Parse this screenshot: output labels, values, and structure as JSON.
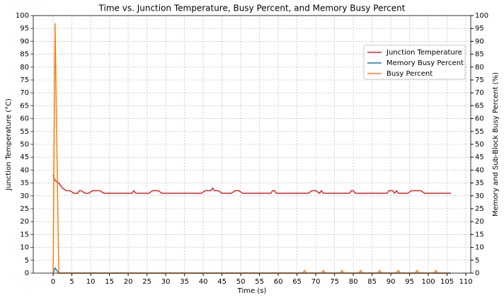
{
  "chart_data": {
    "type": "line",
    "title": "Time vs. Junction Temperature, Busy Percent, and Memory Busy Percent",
    "x_label": "Time (s)",
    "y_label": "Junction Temperature (°C)",
    "y2_label": "Memory and Sub-Block Busy Percent (%)",
    "xlim": [
      -5.3,
      111.3
    ],
    "xticks": [
      0,
      5,
      10,
      15,
      20,
      25,
      30,
      35,
      40,
      45,
      50,
      55,
      60,
      65,
      70,
      75,
      80,
      85,
      90,
      95,
      100,
      105,
      110
    ],
    "ylim": [
      0,
      100
    ],
    "yticks": [
      0,
      5,
      10,
      15,
      20,
      25,
      30,
      35,
      40,
      45,
      50,
      55,
      60,
      65,
      70,
      75,
      80,
      85,
      90,
      95,
      100
    ],
    "y2lim": [
      0,
      100
    ],
    "y2ticks": [
      0,
      5,
      10,
      15,
      20,
      25,
      30,
      35,
      40,
      45,
      50,
      55,
      60,
      65,
      70,
      75,
      80,
      85,
      90,
      95,
      100
    ],
    "y_label_color": "#d62728",
    "grid": true,
    "legend": "upper right",
    "series": [
      {
        "name": "Junction Temperature",
        "color": "#d62728",
        "axis": "y",
        "x": [
          0,
          0.5,
          1.5,
          2.5,
          3.5,
          4.5,
          5.5,
          6.5,
          7,
          7.5,
          8.5,
          9.5,
          10.5,
          12.5,
          13.5,
          21,
          21.5,
          22,
          25.5,
          26.5,
          28,
          29,
          39.5,
          40.5,
          42,
          42.5,
          43,
          44,
          45,
          47.5,
          48.5,
          49.5,
          50.5,
          58,
          58.5,
          59,
          59.5,
          68,
          69,
          70,
          71,
          71.5,
          72,
          79,
          79.5,
          80,
          80.5,
          89,
          89.5,
          90.5,
          91,
          91.5,
          92,
          94.5,
          95.5,
          98,
          99,
          106
        ],
        "values": [
          38,
          36,
          35,
          33,
          32,
          32,
          31,
          31,
          32,
          32,
          31,
          31,
          32,
          32,
          31,
          31,
          32,
          31,
          31,
          32,
          32,
          31,
          31,
          32,
          32,
          33,
          32,
          32,
          31,
          31,
          32,
          32,
          31,
          31,
          32,
          32,
          31,
          31,
          32,
          32,
          31,
          32,
          31,
          31,
          32,
          32,
          31,
          31,
          32,
          32,
          31,
          32,
          31,
          31,
          32,
          32,
          31,
          31
        ]
      },
      {
        "name": "Memory Busy Percent",
        "color": "#1f77b4",
        "axis": "y2",
        "x": [
          0,
          0.5,
          1.5,
          106
        ],
        "values": [
          0,
          2,
          0,
          0
        ]
      },
      {
        "name": "Busy Percent",
        "color": "#ff7f0e",
        "axis": "y2",
        "x": [
          0,
          0.5,
          1.5,
          66.5,
          67,
          67.5,
          71.5,
          72,
          72.5,
          76.5,
          77,
          77.5,
          81.5,
          82,
          82.5,
          86.5,
          87,
          87.5,
          91.5,
          92,
          92.5,
          96.5,
          97,
          97.5,
          101.5,
          102,
          102.5,
          106
        ],
        "values": [
          0,
          97,
          0,
          0,
          1,
          0,
          0,
          1,
          0,
          0,
          1,
          0,
          0,
          1,
          0,
          0,
          1,
          0,
          0,
          1,
          0,
          0,
          1,
          0,
          0,
          1,
          0,
          0
        ]
      }
    ]
  }
}
